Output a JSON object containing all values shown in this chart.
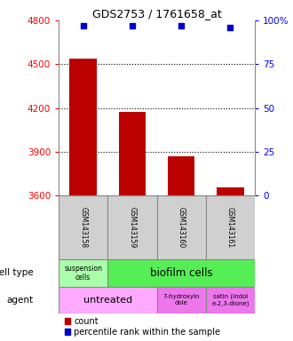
{
  "title": "GDS2753 / 1761658_at",
  "samples": [
    "GSM143158",
    "GSM143159",
    "GSM143160",
    "GSM143161"
  ],
  "counts": [
    4540,
    4175,
    3870,
    3660
  ],
  "percentile_ranks": [
    97,
    97,
    97,
    96
  ],
  "ymin": 3600,
  "ymax": 4800,
  "yticks_left": [
    3600,
    3900,
    4200,
    4500,
    4800
  ],
  "yticks_right": [
    0,
    25,
    50,
    75,
    100
  ],
  "dotted_lines": [
    3900,
    4200,
    4500
  ],
  "bar_color": "#bb0000",
  "dot_color": "#0000cc",
  "suspension_color": "#aaffaa",
  "biofilm_color": "#55ee55",
  "untreated_color": "#ffaaff",
  "agent2_color": "#ee77ee",
  "agent3_color": "#ee77ee",
  "sample_box_color": "#d0d0d0",
  "cell_type_label": "cell type",
  "agent_label": "agent",
  "legend_count": "count",
  "legend_percentile": "percentile rank within the sample",
  "bar_width": 0.55
}
